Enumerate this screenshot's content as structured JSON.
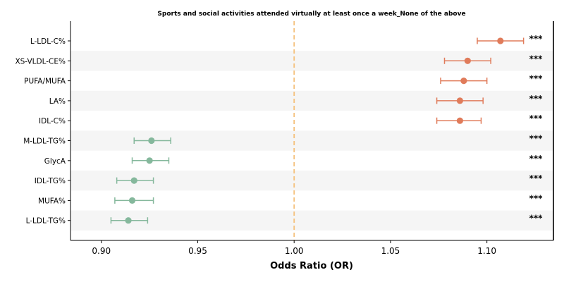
{
  "chart_data": {
    "type": "forest",
    "title": "Sports and social activities attended virtually at least once a week_None of the above",
    "xlabel": "Odds Ratio (OR)",
    "xlim": [
      0.884,
      1.1345
    ],
    "xticks": [
      0.9,
      0.95,
      1.0,
      1.05,
      1.1
    ],
    "xtick_labels": [
      "0.90",
      "0.95",
      "1.00",
      "1.05",
      "1.10"
    ],
    "reference_line": 1.0,
    "colors": {
      "positive": "#e07b5a",
      "negative": "#85b89c",
      "reference": "#f5c07a",
      "band": "#f5f5f5"
    },
    "categories": [
      "L-LDL-C%",
      "XS-VLDL-CE%",
      "PUFA/MUFA",
      "LA%",
      "IDL-C%",
      "M-LDL-TG%",
      "GlycA",
      "IDL-TG%",
      "MUFA%",
      "L-LDL-TG%"
    ],
    "or": [
      1.107,
      1.09,
      1.088,
      1.086,
      1.086,
      0.926,
      0.925,
      0.917,
      0.916,
      0.914
    ],
    "ci_low": [
      1.095,
      1.078,
      1.076,
      1.074,
      1.074,
      0.917,
      0.916,
      0.908,
      0.907,
      0.905
    ],
    "ci_high": [
      1.119,
      1.102,
      1.1,
      1.098,
      1.097,
      0.936,
      0.935,
      0.927,
      0.927,
      0.924
    ],
    "significance": [
      "***",
      "***",
      "***",
      "***",
      "***",
      "***",
      "***",
      "***",
      "***",
      "***"
    ]
  }
}
